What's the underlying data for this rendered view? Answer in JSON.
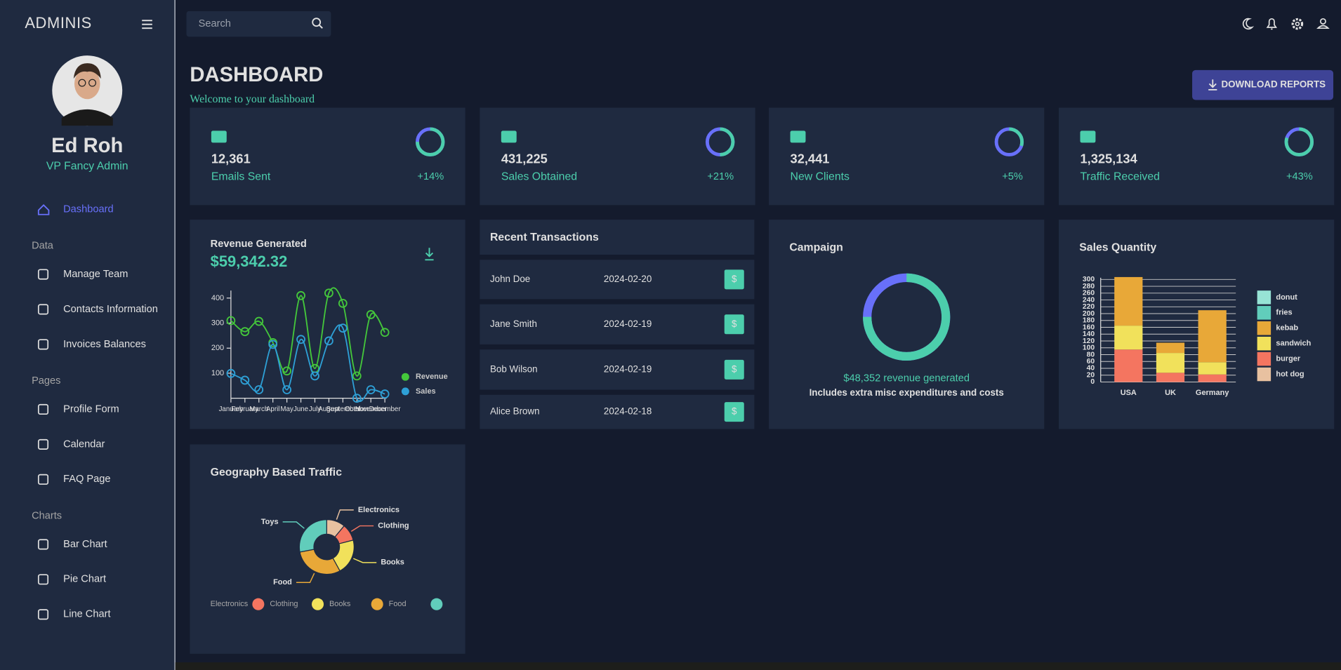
{
  "topbar": {
    "search": "Search"
  },
  "sidebar": {
    "brand": "ADMINIS",
    "name": "Ed Roh",
    "role": "VP Fancy Admin",
    "active_item": "Dashboard",
    "groups": [
      {
        "title": "Data",
        "items": [
          "Manage Team",
          "Contacts Information",
          "Invoices Balances"
        ]
      },
      {
        "title": "Pages",
        "items": [
          "Profile Form",
          "Calendar",
          "FAQ Page"
        ]
      },
      {
        "title": "Charts",
        "items": [
          "Bar Chart",
          "Pie Chart",
          "Line Chart"
        ]
      }
    ]
  },
  "header": {
    "title": "DASHBOARD",
    "subtitle": "Welcome to your dashboard",
    "button": "DOWNLOAD REPORTS"
  },
  "stats": [
    {
      "value": "12,361",
      "label": "Emails Sent",
      "change": "+14%",
      "progress": 0.75
    },
    {
      "value": "431,225",
      "label": "Sales Obtained",
      "change": "+21%",
      "progress": 0.5
    },
    {
      "value": "32,441",
      "label": "New Clients",
      "change": "+5%",
      "progress": 0.3
    },
    {
      "value": "1,325,134",
      "label": "Traffic Received",
      "change": "+43%",
      "progress": 0.8
    }
  ],
  "revenue": {
    "title": "Revenue Generated",
    "total": "$59,342.32",
    "chart_data": {
      "type": "line",
      "categories": [
        "January",
        "February",
        "March",
        "April",
        "May",
        "June",
        "July",
        "August",
        "September",
        "October",
        "November",
        "December"
      ],
      "series": [
        {
          "name": "Revenue",
          "color": "#44c73b",
          "values": [
            310,
            266,
            307,
            222,
            109,
            410,
            119,
            420,
            379,
            89,
            334,
            263
          ]
        },
        {
          "name": "Sales",
          "color": "#2ea0d6",
          "values": [
            99,
            72,
            34,
            215,
            34,
            235,
            89,
            229,
            280,
            0,
            34,
            17
          ]
        }
      ],
      "ylim": [
        0,
        430
      ],
      "yticks": [
        100,
        200,
        300,
        400
      ]
    }
  },
  "transactions": {
    "title": "Recent Transactions",
    "rows": [
      {
        "name": "John Doe",
        "date": "2024-02-20",
        "action": "$"
      },
      {
        "name": "Jane Smith",
        "date": "2024-02-19",
        "action": "$"
      },
      {
        "name": "Bob Wilson",
        "date": "2024-02-19",
        "action": "$"
      },
      {
        "name": "Alice Brown",
        "date": "2024-02-18",
        "action": "$"
      }
    ]
  },
  "campaign": {
    "title": "Campaign",
    "progress": 0.75,
    "caption": "$48,352 revenue generated",
    "note": "Includes extra misc expenditures and costs"
  },
  "sales_quantity": {
    "title": "Sales Quantity",
    "chart_data": {
      "type": "bar",
      "stacked": true,
      "categories": [
        "USA",
        "UK",
        "Germany"
      ],
      "series": [
        {
          "name": "hot dog",
          "color": "#e8c1a0",
          "values": [
            0,
            0,
            0
          ]
        },
        {
          "name": "burger",
          "color": "#f47560",
          "values": [
            95,
            27,
            22
          ]
        },
        {
          "name": "sandwich",
          "color": "#f1e15b",
          "values": [
            70,
            58,
            36
          ]
        },
        {
          "name": "kebab",
          "color": "#e8a838",
          "values": [
            142,
            30,
            152
          ]
        },
        {
          "name": "fries",
          "color": "#61cdbb",
          "values": [
            0,
            0,
            0
          ]
        },
        {
          "name": "donut",
          "color": "#97e3d5",
          "values": [
            0,
            0,
            0
          ]
        }
      ],
      "ylim": [
        0,
        300
      ],
      "yticks": [
        0,
        20,
        40,
        60,
        80,
        100,
        120,
        140,
        160,
        180,
        200,
        220,
        240,
        260,
        280,
        300
      ],
      "grid": true
    }
  },
  "geography": {
    "title": "Geography Based Traffic",
    "chart_data": {
      "type": "pie",
      "categories": [
        "Electronics",
        "Clothing",
        "Books",
        "Food",
        "Toys"
      ],
      "values": [
        11,
        10,
        21,
        30,
        28
      ],
      "colors": [
        "#e8c1a0",
        "#f47560",
        "#f1e15b",
        "#e8a838",
        "#61cdbb"
      ]
    }
  }
}
